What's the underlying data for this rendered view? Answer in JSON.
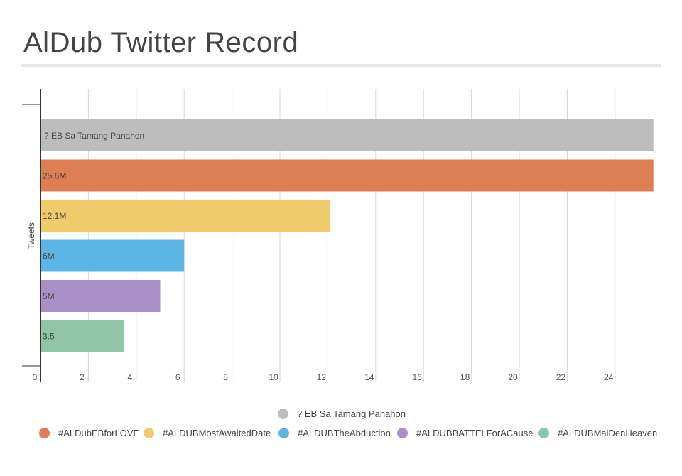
{
  "chart_data": {
    "type": "bar",
    "orientation": "horizontal",
    "title": "AlDub Twitter Record",
    "ylabel": "Tweets",
    "xlabel": "",
    "xlim": [
      0,
      25.6
    ],
    "xticks": [
      0,
      2,
      4,
      6,
      8,
      10,
      12,
      14,
      16,
      18,
      20,
      22,
      24
    ],
    "grid": true,
    "legend_position": "bottom",
    "series": [
      {
        "name": "? EB Sa Tamang Panahon",
        "value": 25.6,
        "label": "? EB Sa Tamang Panahon",
        "color": "#bdbdbd"
      },
      {
        "name": "#ALDubEBforLOVE",
        "value": 25.6,
        "label": "25.6M",
        "color": "#dd7e54"
      },
      {
        "name": "#ALDUBMostAwaitedDate",
        "value": 12.1,
        "label": "12.1M",
        "color": "#efcb6b"
      },
      {
        "name": "#ALDUBTheAbduction",
        "value": 6,
        "label": "6M",
        "color": "#5db5e5"
      },
      {
        "name": "#ALDUBBATTELForACause",
        "value": 5,
        "label": "5M",
        "color": "#aa8fc8"
      },
      {
        "name": "#ALDUBMaiDenHeaven",
        "value": 3.5,
        "label": "3.5",
        "color": "#8fc4a6"
      }
    ]
  }
}
